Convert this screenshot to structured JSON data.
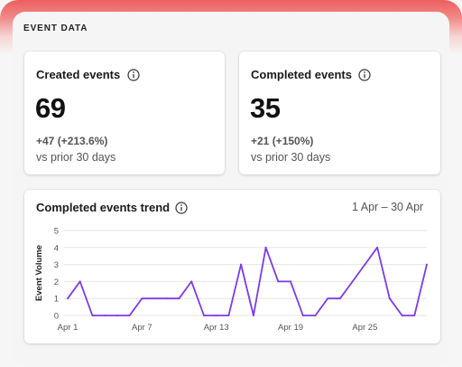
{
  "section": {
    "title": "EVENT DATA"
  },
  "cards": {
    "created": {
      "title": "Created events",
      "value": "69",
      "delta": "+47 (+213.6%)",
      "period": "vs prior 30 days"
    },
    "completed": {
      "title": "Completed events",
      "value": "35",
      "delta": "+21 (+150%)",
      "period": "vs prior 30 days"
    }
  },
  "trend": {
    "title": "Completed events trend",
    "range": "1 Apr – 30 Apr",
    "icon": "info-icon"
  },
  "colors": {
    "line": "#7c3aed",
    "accent": "#ee5f5f"
  },
  "chart_data": {
    "type": "line",
    "ylabel": "Event Volume",
    "xlabel": "",
    "ylim": [
      0,
      5
    ],
    "yticks": [
      0,
      1,
      2,
      3,
      4,
      5
    ],
    "xtick_labels": [
      "Apr 1",
      "Apr 7",
      "Apr 13",
      "Apr 19",
      "Apr 25"
    ],
    "xtick_days": [
      1,
      7,
      13,
      19,
      25
    ],
    "x": [
      1,
      2,
      3,
      4,
      5,
      6,
      7,
      8,
      9,
      10,
      11,
      12,
      13,
      14,
      15,
      16,
      17,
      18,
      19,
      20,
      21,
      22,
      23,
      24,
      25,
      26,
      27,
      28,
      29,
      30
    ],
    "series": [
      {
        "values": [
          1,
          2,
          0,
          0,
          0,
          0,
          1,
          1,
          1,
          1,
          2,
          0,
          0,
          0,
          3,
          0,
          4,
          2,
          2,
          0,
          0,
          1,
          1,
          2,
          3,
          4,
          1,
          0,
          0,
          3
        ]
      }
    ],
    "grid": true
  }
}
